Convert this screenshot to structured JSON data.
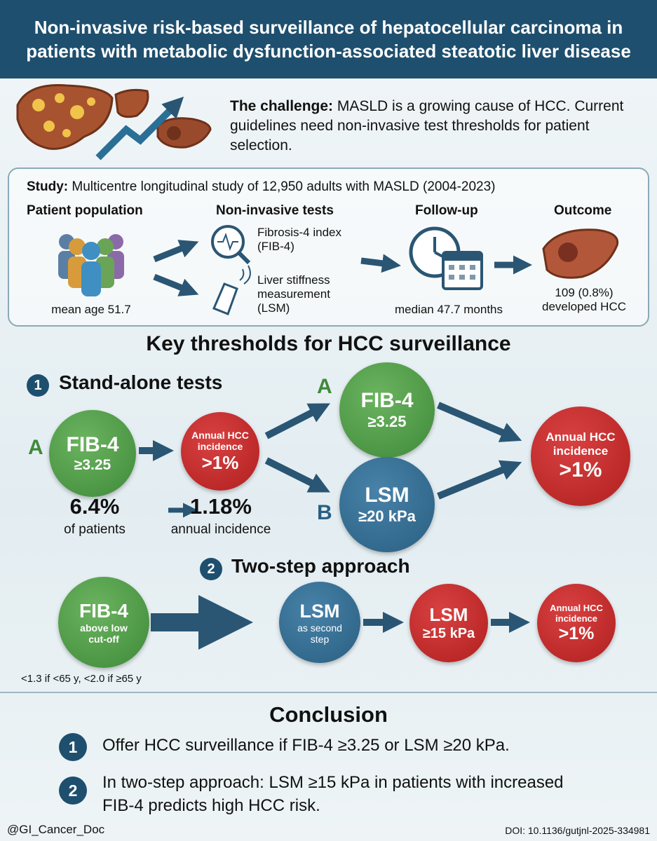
{
  "header": {
    "title": "Non-invasive risk-based surveillance of hepatocellular carcinoma in patients with metabolic dysfunction-associated steatotic liver disease"
  },
  "challenge": {
    "label": "The challenge:",
    "text": "MASLD is a growing cause of HCC. Current guidelines need non-invasive test thresholds for patient selection."
  },
  "study": {
    "label": "Study:",
    "text": "Multicentre longitudinal study of 12,950 adults with MASLD (2004-2023)",
    "population": {
      "heading": "Patient population",
      "caption": "mean age 51.7"
    },
    "tests": {
      "heading": "Non-invasive tests",
      "items": [
        "Fibrosis-4 index (FIB-4)",
        "Liver stiffness measurement (LSM)"
      ]
    },
    "follow_up": {
      "heading": "Follow-up",
      "caption": "median 47.7 months"
    },
    "outcome": {
      "heading": "Outcome",
      "caption": "109 (0.8%) developed HCC"
    }
  },
  "thresholds": {
    "title": "Key thresholds for HCC surveillance"
  },
  "standalone": {
    "number": "1",
    "heading": "Stand-alone tests",
    "letter": "A",
    "test": {
      "name": "FIB-4",
      "cutoff": "≥3.25"
    },
    "result": {
      "label": "Annual HCC incidence",
      "value": ">1%"
    },
    "patients": {
      "value": "6.4%",
      "label": "of patients"
    },
    "incidence": {
      "value": "1.18%",
      "label": "annual incidence"
    }
  },
  "either": {
    "a": {
      "letter": "A",
      "name": "FIB-4",
      "cutoff": "≥3.25"
    },
    "b": {
      "letter": "B",
      "name": "LSM",
      "cutoff": "≥20 kPa"
    },
    "result": {
      "label": "Annual HCC incidence",
      "value": ">1%"
    }
  },
  "two_step": {
    "number": "2",
    "heading": "Two-step approach",
    "steps": [
      {
        "name": "FIB-4",
        "detail": "above low cut-off"
      },
      {
        "name": "LSM",
        "detail": "as second step"
      },
      {
        "name": "LSM",
        "detail": "≥15 kPa"
      },
      {
        "name": "Annual HCC incidence",
        "detail": ">1%"
      }
    ],
    "note": "<1.3 if <65 y, <2.0 if ≥65 y"
  },
  "conclusion": {
    "title": "Conclusion",
    "items": [
      {
        "number": "1",
        "text": "Offer HCC surveillance if FIB-4 ≥3.25 or LSM ≥20 kPa."
      },
      {
        "number": "2",
        "text": "In two-step approach: LSM ≥15 kPa in patients with increased FIB-4 predicts high HCC risk."
      }
    ]
  },
  "footer": {
    "handle": "@GI_Cancer_Doc",
    "doi": "DOI: 10.1136/gutjnl-2025-334981"
  }
}
